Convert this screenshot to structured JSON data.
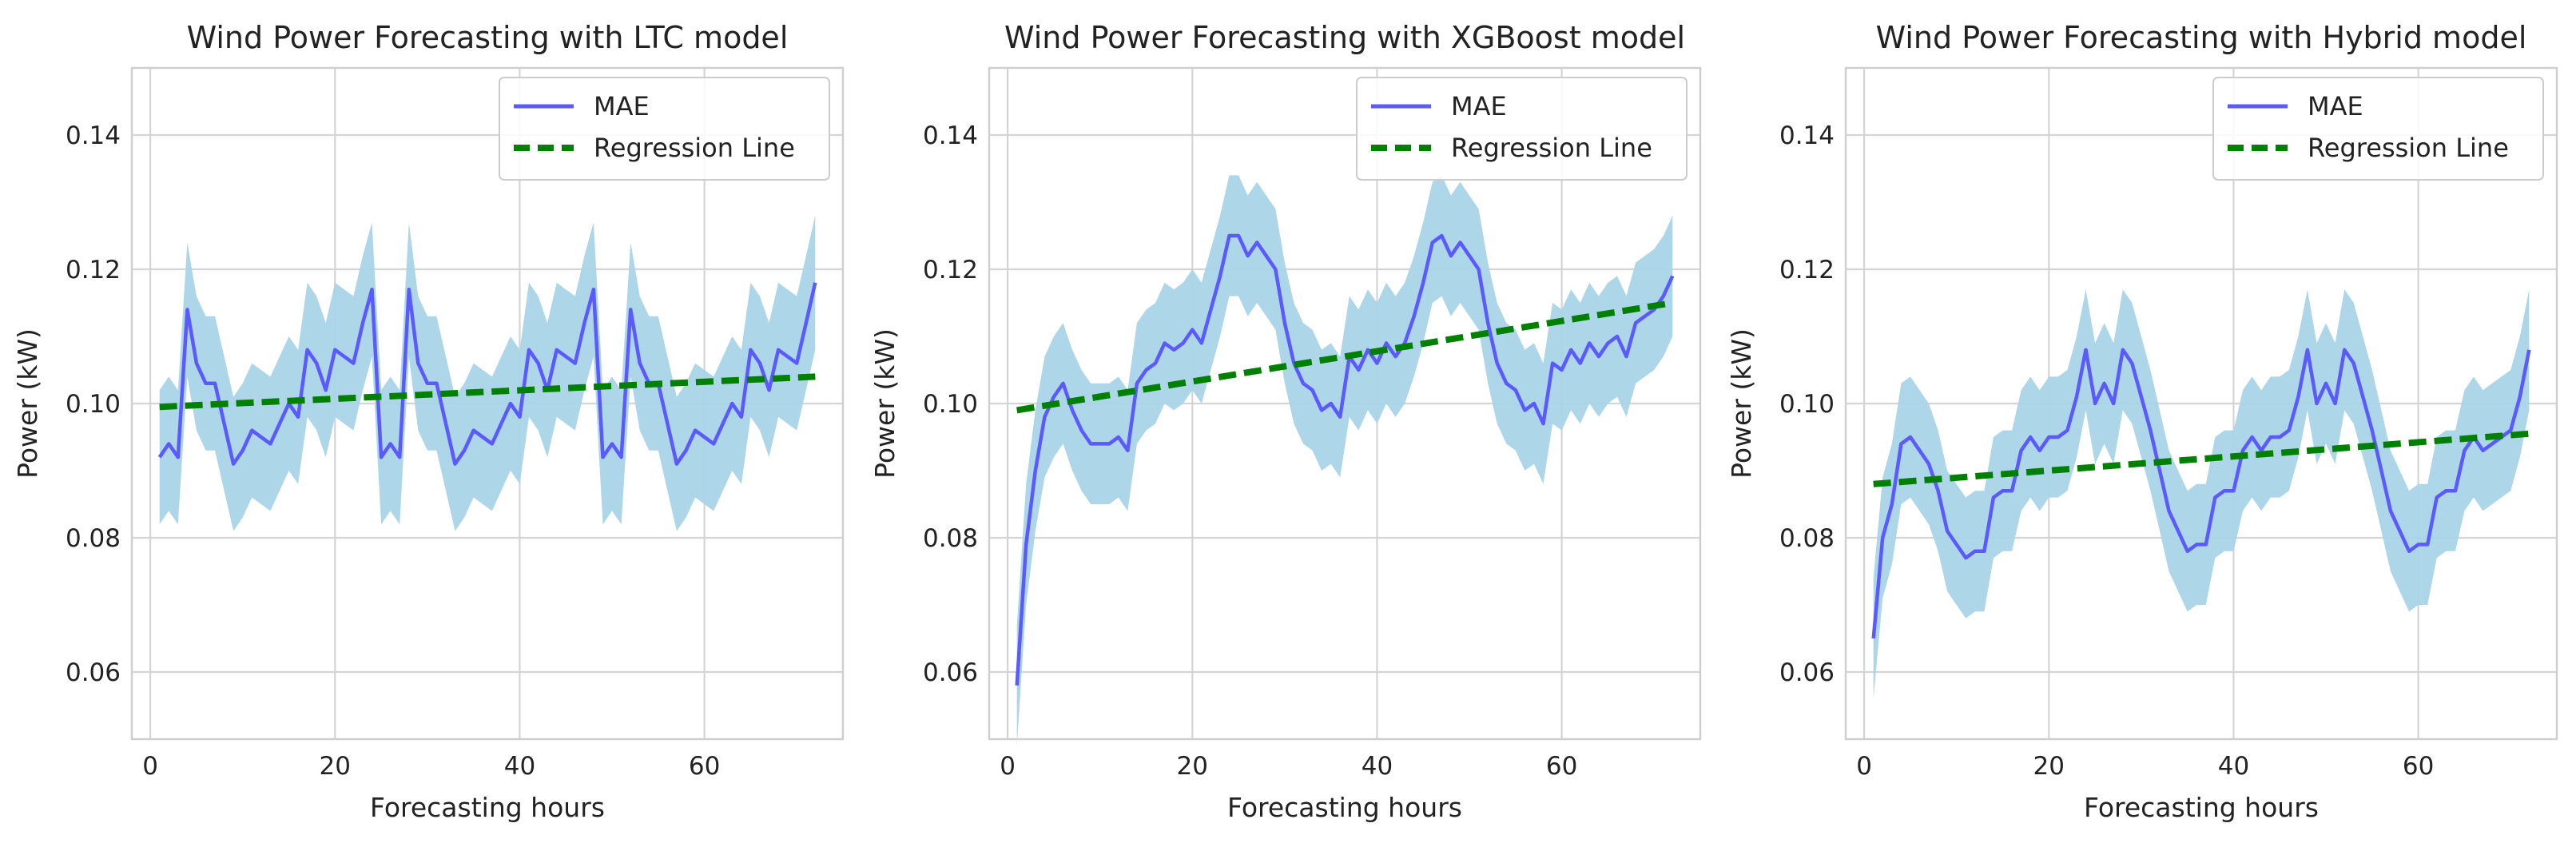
{
  "chart_data": [
    {
      "type": "line",
      "title": "Wind Power Forecasting with LTC model",
      "xlabel": "Forecasting hours",
      "ylabel": "Power (kW)",
      "xlim": [
        -2,
        75
      ],
      "ylim": [
        0.05,
        0.15
      ],
      "xticks": [
        0,
        20,
        40,
        60
      ],
      "yticks": [
        0.06,
        0.08,
        0.1,
        0.12,
        0.14
      ],
      "ytick_labels": [
        "0.06",
        "0.08",
        "0.10",
        "0.12",
        "0.14"
      ],
      "grid": true,
      "legend": {
        "position": "top-right",
        "entries": [
          "MAE",
          "Regression Line"
        ]
      },
      "series": [
        {
          "name": "MAE",
          "color": "#5a5aff",
          "x": [
            1,
            2,
            3,
            4,
            5,
            6,
            7,
            8,
            9,
            10,
            11,
            12,
            13,
            14,
            15,
            16,
            17,
            18,
            19,
            20,
            21,
            22,
            23,
            24,
            25,
            26,
            27,
            28,
            29,
            30,
            31,
            32,
            33,
            34,
            35,
            36,
            37,
            38,
            39,
            40,
            41,
            42,
            43,
            44,
            45,
            46,
            47,
            48,
            49,
            50,
            51,
            52,
            53,
            54,
            55,
            56,
            57,
            58,
            59,
            60,
            61,
            62,
            63,
            64,
            65,
            66,
            67,
            68,
            69,
            70,
            71,
            72
          ],
          "values": [
            0.092,
            0.094,
            0.092,
            0.114,
            0.106,
            0.103,
            0.103,
            0.097,
            0.091,
            0.093,
            0.096,
            0.095,
            0.094,
            0.097,
            0.1,
            0.098,
            0.108,
            0.106,
            0.102,
            0.108,
            0.107,
            0.106,
            0.112,
            0.117,
            0.092,
            0.094,
            0.092,
            0.117,
            0.106,
            0.103,
            0.103,
            0.097,
            0.091,
            0.093,
            0.096,
            0.095,
            0.094,
            0.097,
            0.1,
            0.098,
            0.108,
            0.106,
            0.102,
            0.108,
            0.107,
            0.106,
            0.112,
            0.117,
            0.092,
            0.094,
            0.092,
            0.114,
            0.106,
            0.103,
            0.103,
            0.097,
            0.091,
            0.093,
            0.096,
            0.095,
            0.094,
            0.097,
            0.1,
            0.098,
            0.108,
            0.106,
            0.102,
            0.108,
            0.107,
            0.106,
            0.112,
            0.118
          ],
          "band_halfwidth": 0.01
        },
        {
          "name": "Regression Line",
          "color": "#008000",
          "style": "dashed",
          "x": [
            1,
            72
          ],
          "values": [
            0.0995,
            0.104
          ]
        }
      ],
      "band_color": "#a9d4e8"
    },
    {
      "type": "line",
      "title": "Wind Power Forecasting with XGBoost model",
      "xlabel": "Forecasting hours",
      "ylabel": "Power (kW)",
      "xlim": [
        -2,
        75
      ],
      "ylim": [
        0.05,
        0.15
      ],
      "xticks": [
        0,
        20,
        40,
        60
      ],
      "yticks": [
        0.06,
        0.08,
        0.1,
        0.12,
        0.14
      ],
      "ytick_labels": [
        "0.06",
        "0.08",
        "0.10",
        "0.12",
        "0.14"
      ],
      "grid": true,
      "legend": {
        "position": "top-right",
        "entries": [
          "MAE",
          "Regression Line"
        ]
      },
      "series": [
        {
          "name": "MAE",
          "color": "#5a5aff",
          "x": [
            1,
            2,
            3,
            4,
            5,
            6,
            7,
            8,
            9,
            10,
            11,
            12,
            13,
            14,
            15,
            16,
            17,
            18,
            19,
            20,
            21,
            22,
            23,
            24,
            25,
            26,
            27,
            28,
            29,
            30,
            31,
            32,
            33,
            34,
            35,
            36,
            37,
            38,
            39,
            40,
            41,
            42,
            43,
            44,
            45,
            46,
            47,
            48,
            49,
            50,
            51,
            52,
            53,
            54,
            55,
            56,
            57,
            58,
            59,
            60,
            61,
            62,
            63,
            64,
            65,
            66,
            67,
            68,
            69,
            70,
            71,
            72
          ],
          "values": [
            0.058,
            0.079,
            0.09,
            0.098,
            0.101,
            0.103,
            0.099,
            0.096,
            0.094,
            0.094,
            0.094,
            0.095,
            0.093,
            0.103,
            0.105,
            0.106,
            0.109,
            0.108,
            0.109,
            0.111,
            0.109,
            0.114,
            0.119,
            0.125,
            0.125,
            0.122,
            0.124,
            0.122,
            0.12,
            0.112,
            0.106,
            0.103,
            0.102,
            0.099,
            0.1,
            0.098,
            0.107,
            0.105,
            0.108,
            0.106,
            0.109,
            0.107,
            0.109,
            0.113,
            0.118,
            0.124,
            0.125,
            0.122,
            0.124,
            0.122,
            0.12,
            0.112,
            0.106,
            0.103,
            0.102,
            0.099,
            0.1,
            0.097,
            0.106,
            0.105,
            0.108,
            0.106,
            0.109,
            0.107,
            0.109,
            0.11,
            0.107,
            0.112,
            0.113,
            0.114,
            0.116,
            0.119
          ],
          "band_halfwidth": 0.009
        },
        {
          "name": "Regression Line",
          "color": "#008000",
          "style": "dashed",
          "x": [
            1,
            72
          ],
          "values": [
            0.099,
            0.115
          ]
        }
      ],
      "band_color": "#a9d4e8"
    },
    {
      "type": "line",
      "title": "Wind Power Forecasting with Hybrid model",
      "xlabel": "Forecasting hours",
      "ylabel": "Power (kW)",
      "xlim": [
        -2,
        75
      ],
      "ylim": [
        0.05,
        0.15
      ],
      "xticks": [
        0,
        20,
        40,
        60
      ],
      "yticks": [
        0.06,
        0.08,
        0.1,
        0.12,
        0.14
      ],
      "ytick_labels": [
        "0.06",
        "0.08",
        "0.10",
        "0.12",
        "0.14"
      ],
      "grid": true,
      "legend": {
        "position": "top-right",
        "entries": [
          "MAE",
          "Regression Line"
        ]
      },
      "series": [
        {
          "name": "MAE",
          "color": "#5a5aff",
          "x": [
            1,
            2,
            3,
            4,
            5,
            6,
            7,
            8,
            9,
            10,
            11,
            12,
            13,
            14,
            15,
            16,
            17,
            18,
            19,
            20,
            21,
            22,
            23,
            24,
            25,
            26,
            27,
            28,
            29,
            30,
            31,
            32,
            33,
            34,
            35,
            36,
            37,
            38,
            39,
            40,
            41,
            42,
            43,
            44,
            45,
            46,
            47,
            48,
            49,
            50,
            51,
            52,
            53,
            54,
            55,
            56,
            57,
            58,
            59,
            60,
            61,
            62,
            63,
            64,
            65,
            66,
            67,
            68,
            69,
            70,
            71,
            72
          ],
          "values": [
            0.065,
            0.08,
            0.085,
            0.094,
            0.095,
            0.093,
            0.091,
            0.087,
            0.081,
            0.079,
            0.077,
            0.078,
            0.078,
            0.086,
            0.087,
            0.087,
            0.093,
            0.095,
            0.093,
            0.095,
            0.095,
            0.096,
            0.101,
            0.108,
            0.1,
            0.103,
            0.1,
            0.108,
            0.106,
            0.101,
            0.096,
            0.09,
            0.084,
            0.081,
            0.078,
            0.079,
            0.079,
            0.086,
            0.087,
            0.087,
            0.093,
            0.095,
            0.093,
            0.095,
            0.095,
            0.096,
            0.101,
            0.108,
            0.1,
            0.103,
            0.1,
            0.108,
            0.106,
            0.101,
            0.096,
            0.09,
            0.084,
            0.081,
            0.078,
            0.079,
            0.079,
            0.086,
            0.087,
            0.087,
            0.093,
            0.095,
            0.093,
            0.094,
            0.095,
            0.096,
            0.101,
            0.108
          ],
          "band_halfwidth": 0.009
        },
        {
          "name": "Regression Line",
          "color": "#008000",
          "style": "dashed",
          "x": [
            1,
            72
          ],
          "values": [
            0.088,
            0.0955
          ]
        }
      ],
      "band_color": "#a9d4e8"
    }
  ]
}
